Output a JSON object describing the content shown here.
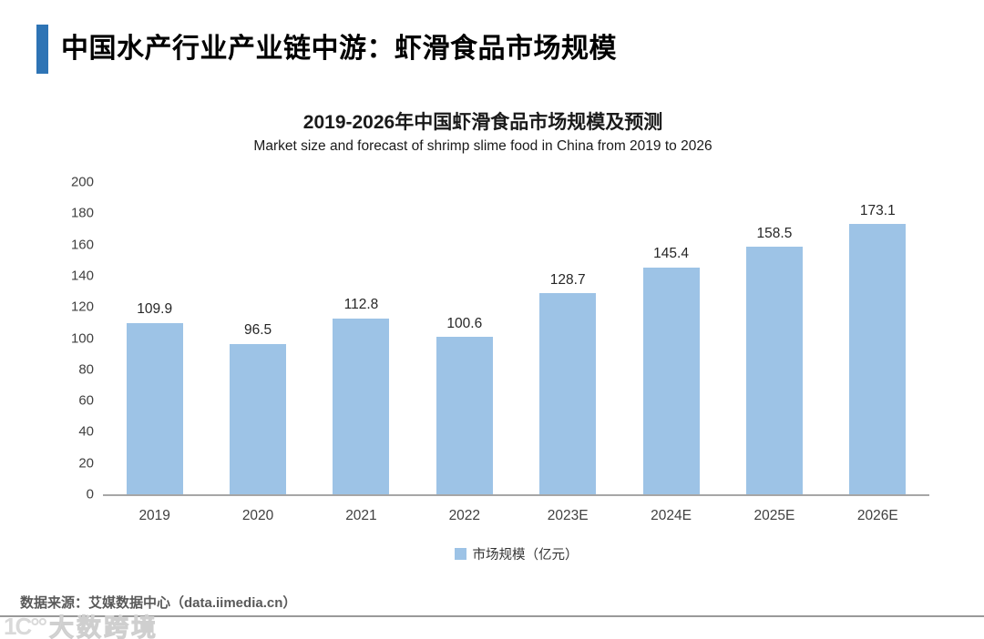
{
  "header": {
    "title": "中国水产行业产业链中游：虾滑食品市场规模",
    "accent_color": "#2E74B5"
  },
  "chart_data": {
    "type": "bar",
    "title": "2019-2026年中国虾滑食品市场规模及预测",
    "subtitle": "Market size and forecast of shrimp slime food in China from 2019 to 2026",
    "categories": [
      "2019",
      "2020",
      "2021",
      "2022",
      "2023E",
      "2024E",
      "2025E",
      "2026E"
    ],
    "values": [
      109.9,
      96.5,
      112.8,
      100.6,
      128.7,
      145.4,
      158.5,
      173.1
    ],
    "series_name": "市场规模（亿元）",
    "xlabel": "",
    "ylabel": "",
    "ylim": [
      0,
      200
    ],
    "ytick_step": 20,
    "bar_color": "#9DC3E6",
    "axis_line_color": "#A6A6A6",
    "grid": false,
    "legend_position": "bottom"
  },
  "legend": {
    "label": "市场规模（亿元）",
    "swatch_color": "#9DC3E6"
  },
  "footer": {
    "source": "数据来源：艾媒数据中心（data.iimedia.cn）",
    "watermark_icon": "1C°°",
    "watermark": "大数跨境"
  }
}
